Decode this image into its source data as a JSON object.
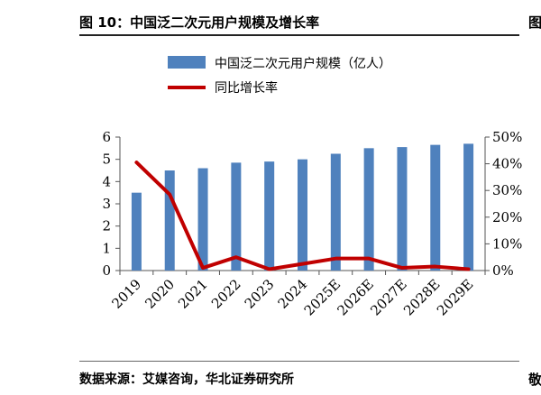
{
  "header": {
    "title": "图 10：中国泛二次元用户规模及增长率",
    "cut_glyph": "图"
  },
  "footer": {
    "source": "数据来源：艾媒咨询，华北证券研究所",
    "cut_glyph": "敬"
  },
  "colors": {
    "bar": "#4F81BD",
    "line": "#C00000",
    "axis": "#555555"
  },
  "chart_data": {
    "type": "bar+line",
    "categories": [
      "2019",
      "2020",
      "2021",
      "2022",
      "2023",
      "2024",
      "2025E",
      "2026E",
      "2027E",
      "2028E",
      "2029E"
    ],
    "series": [
      {
        "name": "中国泛二次元用户规模（亿人）",
        "kind": "bar",
        "axis": "left",
        "values": [
          3.5,
          4.5,
          4.6,
          4.85,
          4.9,
          5.0,
          5.25,
          5.5,
          5.55,
          5.65,
          5.7
        ]
      },
      {
        "name": "同比增长率",
        "kind": "line",
        "axis": "right",
        "values": [
          40.5,
          28.5,
          1.0,
          5.0,
          0.5,
          2.5,
          4.5,
          4.5,
          1.0,
          1.5,
          0.5
        ]
      }
    ],
    "left_axis": {
      "ylim": [
        0,
        6
      ],
      "ticks": [
        "0",
        "1",
        "2",
        "3",
        "4",
        "5",
        "6"
      ]
    },
    "right_axis": {
      "ylim": [
        0,
        50
      ],
      "ticks": [
        "0%",
        "10%",
        "20%",
        "30%",
        "40%",
        "50%"
      ]
    }
  }
}
